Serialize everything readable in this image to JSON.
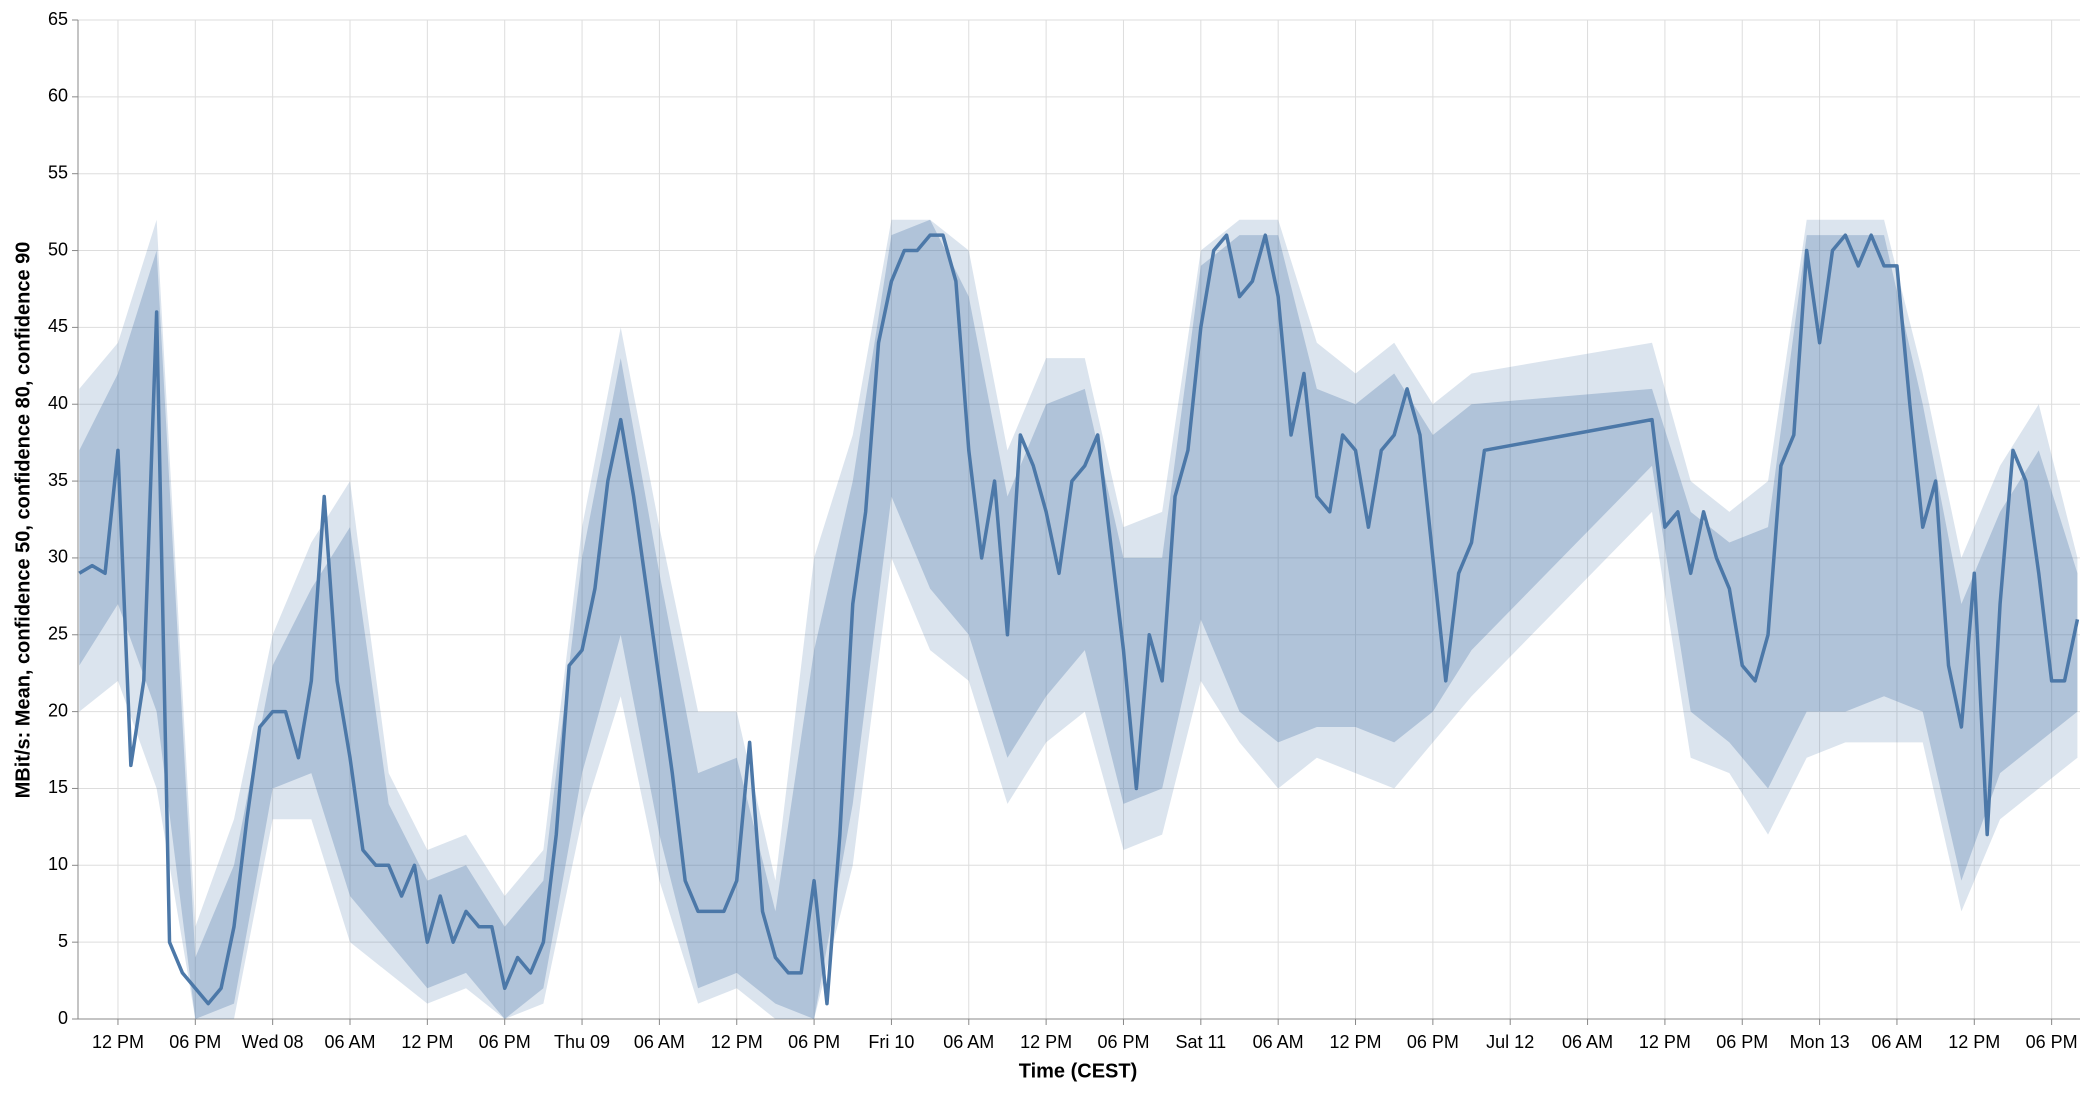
{
  "chart_data": {
    "type": "line",
    "x_label": "Time (CEST)",
    "y_label": "MBit/s: Mean, confidence 50, confidence 80, confidence 90",
    "xlim": [
      8.9,
      164.2
    ],
    "ylim": [
      0,
      65
    ],
    "grid": true,
    "xticks": [
      {
        "value": 12,
        "label": "12 PM"
      },
      {
        "value": 18,
        "label": "06 PM"
      },
      {
        "value": 24,
        "label": "Wed 08"
      },
      {
        "value": 30,
        "label": "06 AM"
      },
      {
        "value": 36,
        "label": "12 PM"
      },
      {
        "value": 42,
        "label": "06 PM"
      },
      {
        "value": 48,
        "label": "Thu 09"
      },
      {
        "value": 54,
        "label": "06 AM"
      },
      {
        "value": 60,
        "label": "12 PM"
      },
      {
        "value": 66,
        "label": "06 PM"
      },
      {
        "value": 72,
        "label": "Fri 10"
      },
      {
        "value": 78,
        "label": "06 AM"
      },
      {
        "value": 84,
        "label": "12 PM"
      },
      {
        "value": 90,
        "label": "06 PM"
      },
      {
        "value": 96,
        "label": "Sat 11"
      },
      {
        "value": 102,
        "label": "06 AM"
      },
      {
        "value": 108,
        "label": "12 PM"
      },
      {
        "value": 114,
        "label": "06 PM"
      },
      {
        "value": 120,
        "label": "Jul 12"
      },
      {
        "value": 126,
        "label": "06 AM"
      },
      {
        "value": 132,
        "label": "12 PM"
      },
      {
        "value": 138,
        "label": "06 PM"
      },
      {
        "value": 144,
        "label": "Mon 13"
      },
      {
        "value": 150,
        "label": "06 AM"
      },
      {
        "value": 156,
        "label": "12 PM"
      },
      {
        "value": 162,
        "label": "06 PM"
      }
    ],
    "yticks": [
      0,
      5,
      10,
      15,
      20,
      25,
      30,
      35,
      40,
      45,
      50,
      55,
      60,
      65
    ],
    "bands": [
      {
        "color": "#4c78a8",
        "opacity": 0.2,
        "x": [
          9,
          12,
          15,
          18,
          21,
          24,
          27,
          30,
          33,
          36,
          39,
          42,
          45,
          48,
          51,
          54,
          57,
          60,
          63,
          66,
          69,
          72,
          75,
          78,
          81,
          84,
          87,
          90,
          93,
          96,
          99,
          102,
          105,
          108,
          111,
          114,
          117,
          131,
          134,
          137,
          140,
          143,
          146,
          149,
          152,
          155,
          158,
          161,
          164
        ],
        "lower": [
          20,
          22,
          15,
          0,
          0,
          13,
          13,
          5,
          3,
          1,
          2,
          0,
          1,
          13,
          21,
          9,
          1,
          2,
          0,
          0,
          10,
          30,
          24,
          22,
          14,
          18,
          20,
          11,
          12,
          22,
          18,
          15,
          17,
          16,
          15,
          18,
          21,
          33,
          17,
          16,
          12,
          17,
          18,
          18,
          18,
          7,
          13,
          15,
          17
        ],
        "upper": [
          41,
          44,
          52,
          6,
          13,
          25,
          31,
          35,
          16,
          11,
          12,
          8,
          11,
          32,
          45,
          32,
          20,
          20,
          9,
          30,
          38,
          52,
          52,
          50,
          37,
          43,
          43,
          32,
          33,
          50,
          52,
          52,
          44,
          42,
          44,
          40,
          42,
          44,
          35,
          33,
          35,
          52,
          52,
          52,
          42,
          30,
          36,
          40,
          30
        ]
      },
      {
        "color": "#4c78a8",
        "opacity": 0.3,
        "x": [
          9,
          12,
          15,
          18,
          21,
          24,
          27,
          30,
          33,
          36,
          39,
          42,
          45,
          48,
          51,
          54,
          57,
          60,
          63,
          66,
          69,
          72,
          75,
          78,
          81,
          84,
          87,
          90,
          93,
          96,
          99,
          102,
          105,
          108,
          111,
          114,
          117,
          131,
          134,
          137,
          140,
          143,
          146,
          149,
          152,
          155,
          158,
          161,
          164
        ],
        "lower": [
          23,
          27,
          20,
          0,
          1,
          15,
          16,
          8,
          5,
          2,
          3,
          0,
          2,
          16,
          25,
          12,
          2,
          3,
          1,
          0,
          14,
          34,
          28,
          25,
          17,
          21,
          24,
          14,
          15,
          26,
          20,
          18,
          19,
          19,
          18,
          20,
          24,
          36,
          20,
          18,
          15,
          20,
          20,
          21,
          20,
          9,
          16,
          18,
          20
        ],
        "upper": [
          37,
          42,
          50,
          4,
          10,
          23,
          28,
          32,
          14,
          9,
          10,
          6,
          9,
          30,
          43,
          29,
          16,
          17,
          7,
          24,
          35,
          51,
          52,
          47,
          34,
          40,
          41,
          30,
          30,
          49,
          51,
          51,
          41,
          40,
          42,
          38,
          40,
          41,
          33,
          31,
          32,
          51,
          51,
          51,
          40,
          27,
          33,
          37,
          29
        ]
      }
    ],
    "line": {
      "color": "#4c78a8",
      "x": [
        9,
        10,
        11,
        12,
        13,
        14,
        15,
        16,
        17,
        18,
        19,
        20,
        21,
        22,
        23,
        24,
        25,
        26,
        27,
        28,
        29,
        30,
        31,
        32,
        33,
        34,
        35,
        36,
        37,
        38,
        39,
        40,
        41,
        42,
        43,
        44,
        45,
        46,
        47,
        48,
        49,
        50,
        51,
        52,
        53,
        54,
        55,
        56,
        57,
        58,
        59,
        60,
        61,
        62,
        63,
        64,
        65,
        66,
        67,
        68,
        69,
        70,
        71,
        72,
        73,
        74,
        75,
        76,
        77,
        78,
        79,
        80,
        81,
        82,
        83,
        84,
        85,
        86,
        87,
        88,
        89,
        90,
        91,
        92,
        93,
        94,
        95,
        96,
        97,
        98,
        99,
        100,
        101,
        102,
        103,
        104,
        105,
        106,
        107,
        108,
        109,
        110,
        111,
        112,
        113,
        114,
        115,
        116,
        117,
        118,
        131,
        132,
        133,
        134,
        135,
        136,
        137,
        138,
        139,
        140,
        141,
        142,
        143,
        144,
        145,
        146,
        147,
        148,
        149,
        150,
        151,
        152,
        153,
        154,
        155,
        156,
        157,
        158,
        159,
        160,
        161,
        162,
        163,
        164
      ],
      "values": [
        29,
        29.5,
        29,
        37,
        16.5,
        22,
        46,
        5,
        3,
        2,
        1,
        2,
        6,
        13,
        19,
        20,
        20,
        17,
        22,
        34,
        22,
        17,
        11,
        10,
        10,
        8,
        10,
        5,
        8,
        5,
        7,
        6,
        6,
        2,
        4,
        3,
        5,
        12,
        23,
        24,
        28,
        35,
        39,
        34,
        28,
        22,
        16,
        9,
        7,
        7,
        7,
        9,
        18,
        7,
        4,
        3,
        3,
        9,
        1,
        12,
        27,
        33,
        44,
        48,
        50,
        50,
        51,
        51,
        48,
        37,
        30,
        35,
        25,
        38,
        36,
        33,
        29,
        35,
        36,
        38,
        31,
        24,
        15,
        25,
        22,
        34,
        37,
        45,
        50,
        51,
        47,
        48,
        51,
        47,
        38,
        42,
        34,
        33,
        38,
        37,
        32,
        37,
        38,
        41,
        38,
        30,
        22,
        29,
        31,
        37,
        39,
        32,
        33,
        29,
        33,
        30,
        28,
        23,
        22,
        25,
        36,
        38,
        50,
        44,
        50,
        51,
        49,
        51,
        49,
        49,
        40,
        32,
        35,
        23,
        19,
        29,
        12,
        27,
        37,
        35,
        29,
        22,
        22,
        26
      ]
    }
  }
}
